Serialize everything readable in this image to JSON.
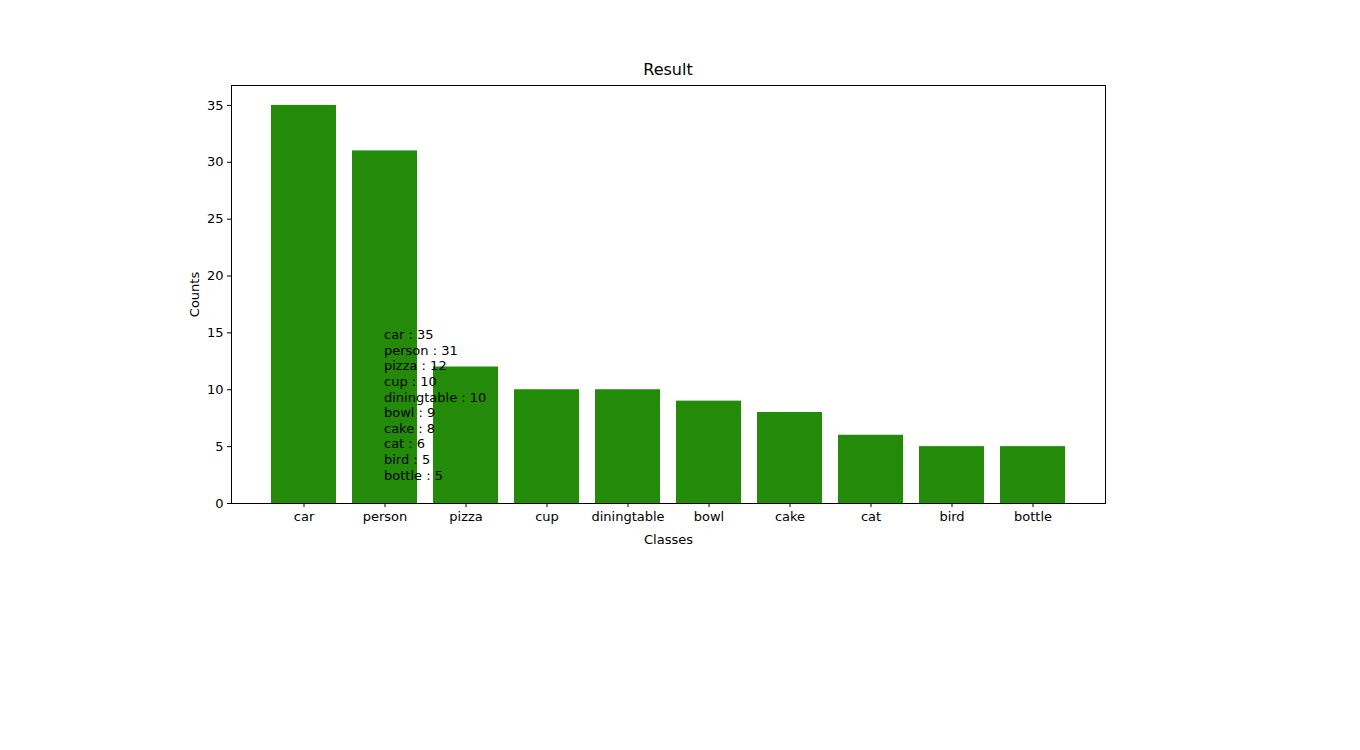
{
  "chart_data": {
    "type": "bar",
    "title": "Result",
    "x_label": "Classes",
    "y_label": "Counts",
    "categories": [
      "car",
      "person",
      "pizza",
      "cup",
      "diningtable",
      "bowl",
      "cake",
      "cat",
      "bird",
      "bottle"
    ],
    "values": [
      35,
      31,
      12,
      10,
      10,
      9,
      8,
      6,
      5,
      5
    ],
    "color": "#238a0a",
    "ylim": [
      0,
      36.75
    ],
    "yticks": [
      0,
      5,
      10,
      15,
      20,
      25,
      30,
      35
    ],
    "grid": false,
    "annotation": [
      "car : 35",
      "person : 31",
      "pizza : 12",
      "cup : 10",
      "diningtable : 10",
      "bowl : 9",
      "cake : 8",
      "cat : 6",
      "bird : 5",
      "bottle : 5"
    ]
  }
}
